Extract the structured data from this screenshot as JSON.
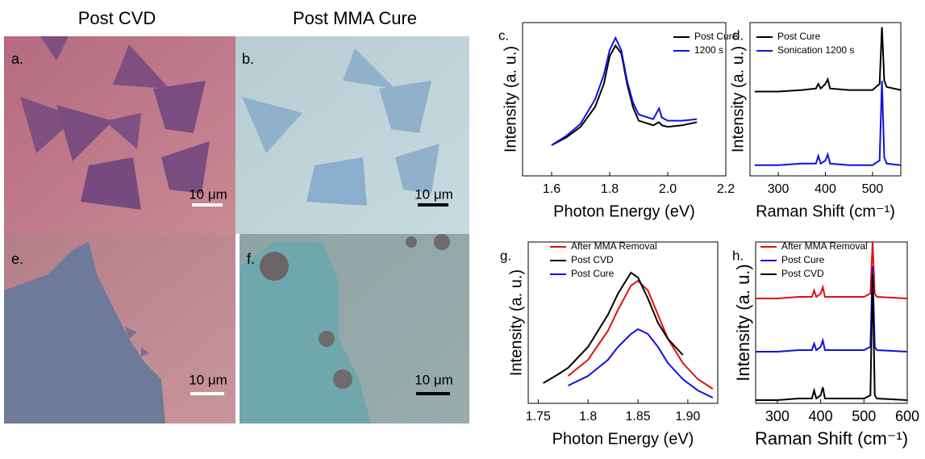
{
  "column_titles": [
    "Post CVD",
    "Post MMA Cure"
  ],
  "images": [
    {
      "label": "a.",
      "scale_bar": "10 μm"
    },
    {
      "label": "b.",
      "scale_bar": "10 μm"
    },
    {
      "label": "e.",
      "scale_bar": "10 μm"
    },
    {
      "label": "f.",
      "scale_bar": "10 μm"
    }
  ],
  "chart_data": [
    {
      "type": "line",
      "label": "c.",
      "xlabel": "Photon Energy (eV)",
      "ylabel": "Intensity (a. u.)",
      "xlim": [
        1.5,
        2.2
      ],
      "xticks": [
        {
          "value": 1.6,
          "label": "1.6"
        },
        {
          "value": 1.8,
          "label": "1.8"
        },
        {
          "value": 2.0,
          "label": "2.0"
        },
        {
          "value": 2.2,
          "label": "2.2"
        }
      ],
      "ylim": [
        0,
        1
      ],
      "x": [
        1.6,
        1.65,
        1.7,
        1.75,
        1.78,
        1.8,
        1.82,
        1.84,
        1.86,
        1.88,
        1.9,
        1.95,
        1.97,
        1.98,
        2.0,
        2.05,
        2.1
      ],
      "series": [
        {
          "name": "Post Cure",
          "color": "#000000",
          "values": [
            0.2,
            0.25,
            0.32,
            0.45,
            0.6,
            0.78,
            0.85,
            0.8,
            0.6,
            0.45,
            0.36,
            0.33,
            0.35,
            0.33,
            0.32,
            0.33,
            0.35
          ]
        },
        {
          "name": "1200 s",
          "color": "#1010e0",
          "values": [
            0.2,
            0.26,
            0.34,
            0.5,
            0.66,
            0.82,
            0.9,
            0.82,
            0.62,
            0.48,
            0.4,
            0.37,
            0.44,
            0.38,
            0.36,
            0.36,
            0.37
          ]
        }
      ]
    },
    {
      "type": "line",
      "label": "d.",
      "xlabel": "Raman Shift (cm⁻¹)",
      "ylabel": "Intensity (a. u.)",
      "xlim": [
        240,
        560
      ],
      "xticks": [
        300,
        400,
        500
      ],
      "ylim": [
        0,
        1
      ],
      "x": [
        250,
        300,
        350,
        380,
        385,
        390,
        400,
        405,
        410,
        450,
        500,
        515,
        520,
        525,
        530,
        560
      ],
      "series": [
        {
          "name": "Post Cure",
          "color": "#000000",
          "values": [
            0.55,
            0.55,
            0.56,
            0.57,
            0.6,
            0.57,
            0.6,
            0.63,
            0.57,
            0.56,
            0.56,
            0.6,
            0.97,
            0.62,
            0.58,
            0.56
          ]
        },
        {
          "name": "Sonication 1200 s",
          "color": "#1010e0",
          "values": [
            0.07,
            0.07,
            0.08,
            0.08,
            0.13,
            0.08,
            0.1,
            0.14,
            0.08,
            0.07,
            0.07,
            0.1,
            0.62,
            0.12,
            0.08,
            0.07
          ]
        }
      ]
    },
    {
      "type": "line",
      "label": "g.",
      "xlabel": "Photon Energy (eV)",
      "ylabel": "Intensity (a. u.)",
      "xlim": [
        1.74,
        1.93
      ],
      "xticks": [
        1.75,
        1.8,
        1.85,
        {
          "value": 1.9,
          "label": "1.90"
        }
      ],
      "ylim": [
        0,
        1
      ],
      "x": [
        1.755,
        1.77,
        1.78,
        1.8,
        1.82,
        1.83,
        1.843,
        1.85,
        1.86,
        1.87,
        1.88,
        1.895,
        1.91,
        1.925
      ],
      "series": [
        {
          "name": "After MMA Removal",
          "color": "#e01010",
          "values": [
            null,
            null,
            0.17,
            0.27,
            0.45,
            0.58,
            0.73,
            0.76,
            0.7,
            0.55,
            0.4,
            0.25,
            0.15,
            0.09
          ]
        },
        {
          "name": "Post CVD",
          "color": "#000000",
          "values": [
            0.125,
            0.18,
            0.22,
            0.35,
            0.55,
            0.68,
            0.81,
            0.78,
            0.65,
            0.5,
            0.4,
            0.3,
            null,
            null
          ]
        },
        {
          "name": "Post Cure",
          "color": "#1010e0",
          "values": [
            null,
            null,
            0.11,
            0.17,
            0.27,
            0.35,
            0.43,
            0.46,
            0.43,
            0.35,
            0.25,
            0.15,
            0.08,
            0.035
          ]
        }
      ]
    },
    {
      "type": "line",
      "label": "h.",
      "xlabel": "Raman Shift (cm⁻¹)",
      "ylabel": "Intensity (a. u.)",
      "xlim": [
        250,
        600
      ],
      "xticks": [
        300,
        400,
        500,
        600
      ],
      "ylim": [
        0,
        1
      ],
      "x": [
        250,
        300,
        350,
        380,
        385,
        390,
        400,
        405,
        410,
        450,
        500,
        515,
        520,
        525,
        530,
        600
      ],
      "series": [
        {
          "name": "After MMA Removal",
          "color": "#e01010",
          "values": [
            0.65,
            0.65,
            0.66,
            0.66,
            0.7,
            0.66,
            0.68,
            0.72,
            0.66,
            0.66,
            0.66,
            0.68,
            1.0,
            0.68,
            0.66,
            0.65
          ]
        },
        {
          "name": "Post Cure",
          "color": "#1010e0",
          "values": [
            0.32,
            0.32,
            0.33,
            0.33,
            0.37,
            0.33,
            0.35,
            0.39,
            0.33,
            0.33,
            0.33,
            0.35,
            0.85,
            0.35,
            0.33,
            0.32
          ]
        },
        {
          "name": "Post CVD",
          "color": "#000000",
          "values": [
            0.02,
            0.02,
            0.03,
            0.03,
            0.08,
            0.03,
            0.05,
            0.1,
            0.03,
            0.03,
            0.03,
            0.05,
            0.8,
            0.05,
            0.03,
            0.02
          ]
        }
      ]
    }
  ]
}
